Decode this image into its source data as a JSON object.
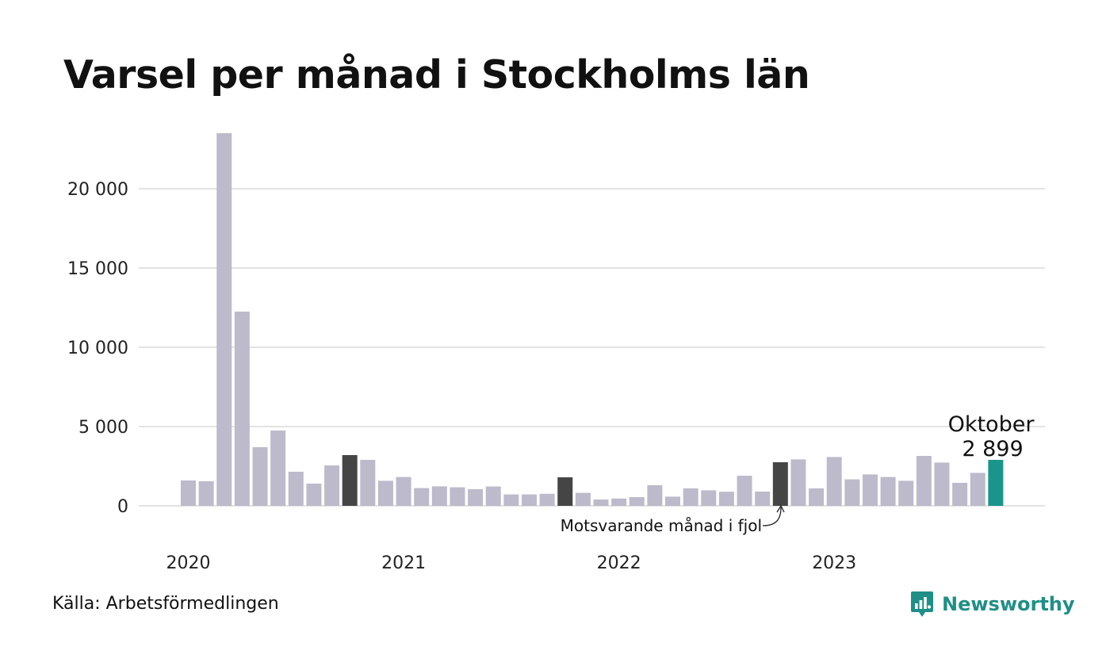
{
  "title": "Varsel per månad i Stockholms län",
  "source": "Källa: Arbetsförmedlingen",
  "brand": {
    "name": "Newsworthy",
    "icon": "newsworthy-logo-icon",
    "color": "#1f8f87"
  },
  "colors": {
    "bar": "#bcbacb",
    "highlight": "#454545",
    "current": "#1a958c",
    "grid": "#e3e3e3"
  },
  "chart_data": {
    "type": "bar",
    "title": "Varsel per månad i Stockholms län",
    "xlabel": "",
    "ylabel": "",
    "ylim": [
      0,
      23500
    ],
    "yticks": [
      0,
      5000,
      10000,
      15000,
      20000
    ],
    "ytick_labels": [
      "0",
      "5 000",
      "10 000",
      "15 000",
      "20 000"
    ],
    "xtick_labels": [
      "2020",
      "2021",
      "2022",
      "2023"
    ],
    "grid": true,
    "categories": [
      "2020-01",
      "2020-02",
      "2020-03",
      "2020-04",
      "2020-05",
      "2020-06",
      "2020-07",
      "2020-08",
      "2020-09",
      "2020-10",
      "2020-11",
      "2020-12",
      "2021-01",
      "2021-02",
      "2021-03",
      "2021-04",
      "2021-05",
      "2021-06",
      "2021-07",
      "2021-08",
      "2021-09",
      "2021-10",
      "2021-11",
      "2021-12",
      "2022-01",
      "2022-02",
      "2022-03",
      "2022-04",
      "2022-05",
      "2022-06",
      "2022-07",
      "2022-08",
      "2022-09",
      "2022-10",
      "2022-11",
      "2022-12",
      "2023-01",
      "2023-02",
      "2023-03",
      "2023-04",
      "2023-05",
      "2023-06",
      "2023-07",
      "2023-08",
      "2023-09",
      "2023-10"
    ],
    "values": [
      1600,
      1550,
      23500,
      12250,
      3700,
      4750,
      2150,
      1400,
      2550,
      3200,
      2900,
      1580,
      1820,
      1120,
      1230,
      1170,
      1050,
      1220,
      720,
      720,
      760,
      1800,
      820,
      400,
      460,
      550,
      1300,
      580,
      1100,
      980,
      890,
      1900,
      900,
      2750,
      2930,
      1100,
      3080,
      1670,
      1980,
      1820,
      1580,
      3150,
      2730,
      1450,
      2080,
      2899
    ],
    "highlight_indices": [
      9,
      21,
      33
    ],
    "current_index": 45,
    "callout": {
      "label": "Oktober",
      "value_label": "2 899"
    },
    "annotation": {
      "text": "Motsvarande månad i fjol"
    }
  }
}
